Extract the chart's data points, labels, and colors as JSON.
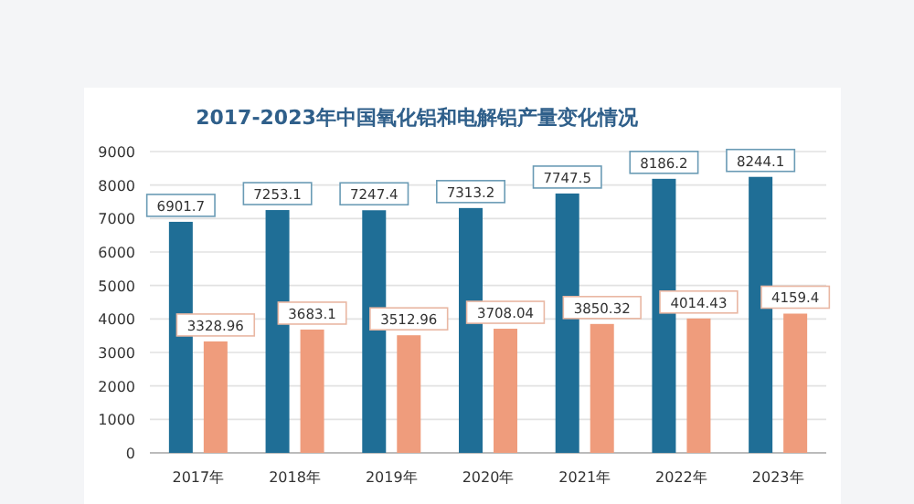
{
  "chart_data": {
    "type": "bar",
    "title": "2017-2023年中国氧化铝和电解铝产量变化情况",
    "categories": [
      "2017年",
      "2018年",
      "2019年",
      "2020年",
      "2021年",
      "2022年",
      "2023年"
    ],
    "series": [
      {
        "color": "#1f6e96",
        "values": [
          6901.7,
          7253.1,
          7247.4,
          7313.2,
          7747.5,
          8186.2,
          8244.1
        ]
      },
      {
        "color": "#ef9c7c",
        "values": [
          3328.96,
          3683.1,
          3512.96,
          3708.04,
          3850.32,
          4014.43,
          4159.4
        ]
      }
    ],
    "ylim": [
      0,
      9000
    ],
    "yticks": [
      0,
      1000,
      2000,
      3000,
      4000,
      5000,
      6000,
      7000,
      8000,
      9000
    ],
    "grid": "y",
    "data_labels": true
  }
}
